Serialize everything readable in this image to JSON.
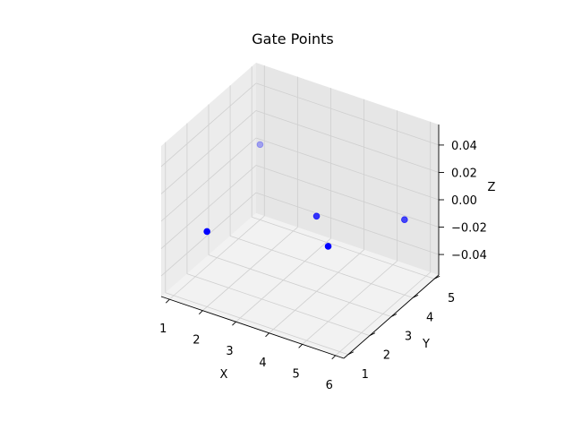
{
  "chart_data": {
    "type": "scatter",
    "title": "Gate Points",
    "xlabel": "X",
    "ylabel": "Y",
    "zlabel": "Z",
    "x_ticks": [
      "1",
      "2",
      "3",
      "4",
      "5",
      "6"
    ],
    "y_ticks": [
      "1",
      "2",
      "3",
      "4",
      "5"
    ],
    "z_ticks": [
      "−0.04",
      "−0.02",
      "0.00",
      "0.02",
      "0.04"
    ],
    "xlim": [
      0.75,
      6.25
    ],
    "ylim": [
      0.8,
      5.2
    ],
    "zlim": [
      -0.055,
      0.055
    ],
    "grid": true,
    "marker_color": "#0000ff",
    "points": [
      {
        "x": 2,
        "y": 1,
        "z": 0
      },
      {
        "x": 5,
        "y": 2,
        "z": 0
      },
      {
        "x": 4,
        "y": 3,
        "z": 0
      },
      {
        "x": 6,
        "y": 4,
        "z": 0
      },
      {
        "x": 1,
        "y": 5,
        "z": 0
      }
    ]
  }
}
